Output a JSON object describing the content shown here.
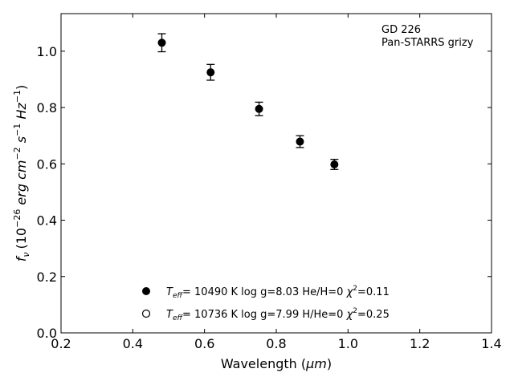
{
  "chart_data": {
    "type": "scatter",
    "annotation": [
      "GD 226",
      "Pan-STARRS grizy"
    ],
    "xlabel": "Wavelength (",
    "xlabel_unit": "μm",
    "xlabel_close": ")",
    "ylabel": "(10",
    "ylabel_exp": "−26",
    "ylabel_mid": " erg cm",
    "ylabel_cm_exp": "−2",
    "ylabel_s": " s",
    "ylabel_s_exp": "−1",
    "ylabel_hz": " Hz",
    "ylabel_hz_exp": "−1",
    "ylabel_close": ")",
    "ylabel_symbol": "f",
    "ylabel_sub": "ν",
    "xlim": [
      0.2,
      1.4
    ],
    "ylim": [
      0.0,
      1.1333
    ],
    "xticks": [
      "0.2",
      "0.4",
      "0.6",
      "0.8",
      "1.0",
      "1.2",
      "1.4"
    ],
    "xtick_values": [
      0.2,
      0.4,
      0.6,
      0.8,
      1.0,
      1.2,
      1.4
    ],
    "yticks": [
      "0.0",
      "0.2",
      "0.4",
      "0.6",
      "0.8",
      "1.0"
    ],
    "ytick_values": [
      0.0,
      0.2,
      0.4,
      0.6,
      0.8,
      1.0
    ],
    "grid": false,
    "legend_position": "bottom-center",
    "series": [
      {
        "marker": "filled-circle",
        "color": "#000000",
        "x": [
          0.481,
          0.617,
          0.752,
          0.866,
          0.962
        ],
        "y": [
          1.03,
          0.925,
          0.795,
          0.679,
          0.598
        ],
        "yerr": [
          0.032,
          0.028,
          0.024,
          0.021,
          0.018
        ]
      }
    ],
    "legend": [
      {
        "marker": "filled-circle",
        "teff_sym": "T",
        "teff_sub": "eff",
        "text": "= 10490 K  log g=8.03  He/H=0  ",
        "chi_sym": "χ",
        "chi_exp": "2",
        "chi_val": "=0.11"
      },
      {
        "marker": "open-circle",
        "teff_sym": "T",
        "teff_sub": "eff",
        "text": "= 10736 K  log g=7.99  H/He=0  ",
        "chi_sym": "χ",
        "chi_exp": "2",
        "chi_val": "=0.25"
      }
    ]
  }
}
